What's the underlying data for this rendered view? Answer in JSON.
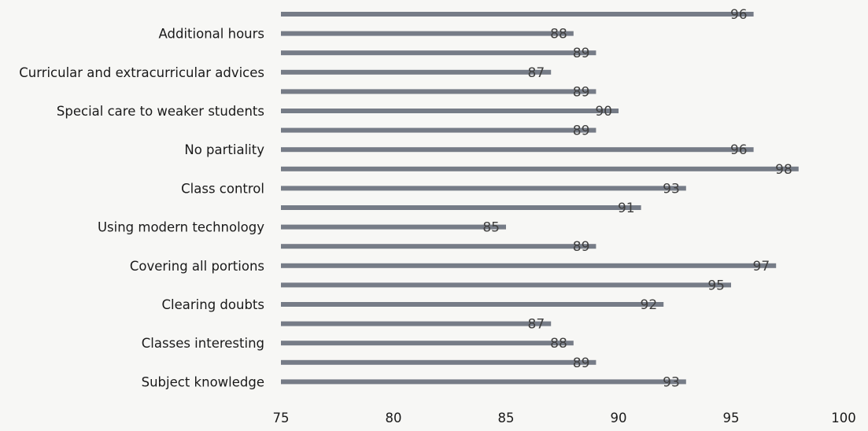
{
  "chart_data": {
    "type": "bar",
    "orientation": "horizontal",
    "xlim": [
      75,
      100
    ],
    "x_ticks": [
      "75",
      "80",
      "85",
      "90",
      "95",
      "100"
    ],
    "rows": [
      {
        "label": "",
        "value": 96
      },
      {
        "label": "Additional hours",
        "value": 88
      },
      {
        "label": "",
        "value": 89
      },
      {
        "label": "Curricular and extracurricular advices",
        "value": 87
      },
      {
        "label": "",
        "value": 89
      },
      {
        "label": "Special care to weaker students",
        "value": 90
      },
      {
        "label": "",
        "value": 89
      },
      {
        "label": "No partiality",
        "value": 96
      },
      {
        "label": "",
        "value": 98
      },
      {
        "label": "Class control",
        "value": 93
      },
      {
        "label": "",
        "value": 91
      },
      {
        "label": "Using modern technology",
        "value": 85
      },
      {
        "label": "",
        "value": 89
      },
      {
        "label": "Covering all portions",
        "value": 97
      },
      {
        "label": "",
        "value": 95
      },
      {
        "label": "Clearing doubts",
        "value": 92
      },
      {
        "label": "",
        "value": 87
      },
      {
        "label": "Classes interesting",
        "value": 88
      },
      {
        "label": "",
        "value": 89
      },
      {
        "label": "Subject knowledge",
        "value": 93
      }
    ],
    "bar_color": "#5f6673",
    "label_color": "#1a1a1a",
    "grid": false,
    "legend": "none"
  }
}
